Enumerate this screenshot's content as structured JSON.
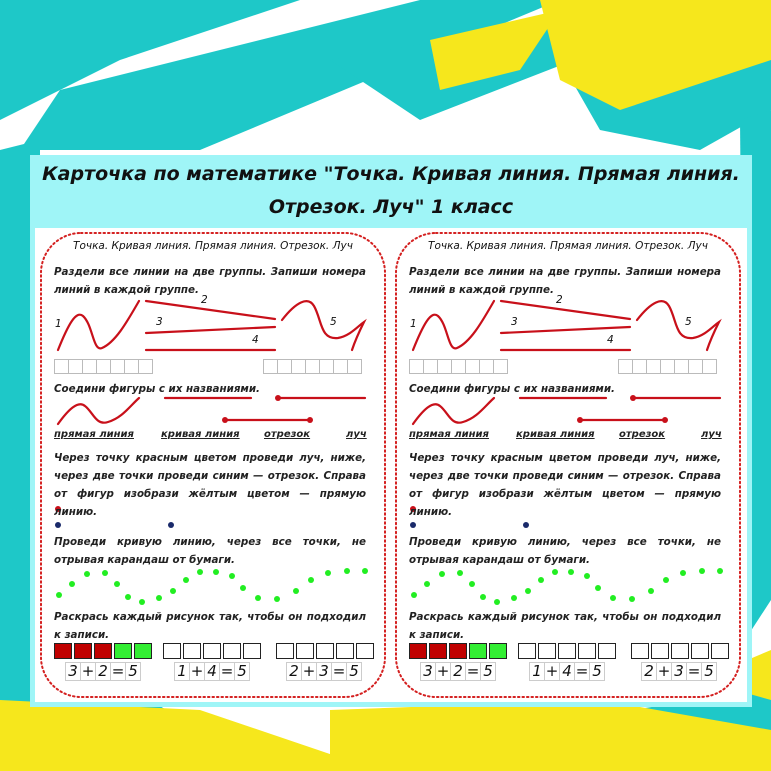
{
  "header": {
    "line1": "Карточка по математике \"Точка. Кривая линия. Прямая линия.",
    "line2": "Отрезок. Луч\" 1 класс"
  },
  "colors": {
    "background_teal": "#1ec8c8",
    "background_yellow": "#f6e71c",
    "frame": "#9ff5f7",
    "border_dots": "#d42020",
    "lines": "#c8101a",
    "dot_red": "#c8101a",
    "dot_blue": "#1a2a6a",
    "dot_green": "#22ee22",
    "fill_red": "#c00000",
    "fill_green": "#33ee33"
  },
  "worksheet": {
    "title": "Точка. Кривая линия. Прямая линия. Отрезок. Луч",
    "task1": "Раздели все линии на две группы. Запиши номера линий в каждой группе.",
    "line_numbers": [
      "1",
      "2",
      "3",
      "4",
      "5"
    ],
    "task2": "Соедини фигуры с их названиями.",
    "names": [
      "прямая линия",
      "кривая линия",
      "отрезок",
      "луч"
    ],
    "task3": "Через точку красным цветом проведи луч, ниже, через две точки проведи синим — отрезок. Справа от фигур изобрази жёлтым цветом — прямую линию.",
    "task4": "Проведи кривую линию, через все точки, не отрывая карандаш от бумаги.",
    "task5": "Раскрась каждый рисунок так, чтобы он подходил к записи.",
    "groups": [
      {
        "fills": [
          "red",
          "red",
          "red",
          "green",
          "green"
        ],
        "equation": [
          "3",
          "+",
          "2",
          "=",
          "5"
        ]
      },
      {
        "fills": [
          "",
          "",
          "",
          "",
          ""
        ],
        "equation": [
          "1",
          "+",
          "4",
          "=",
          "5"
        ]
      },
      {
        "fills": [
          "",
          "",
          "",
          "",
          ""
        ],
        "equation": [
          "2",
          "+",
          "3",
          "=",
          "5"
        ]
      }
    ]
  }
}
